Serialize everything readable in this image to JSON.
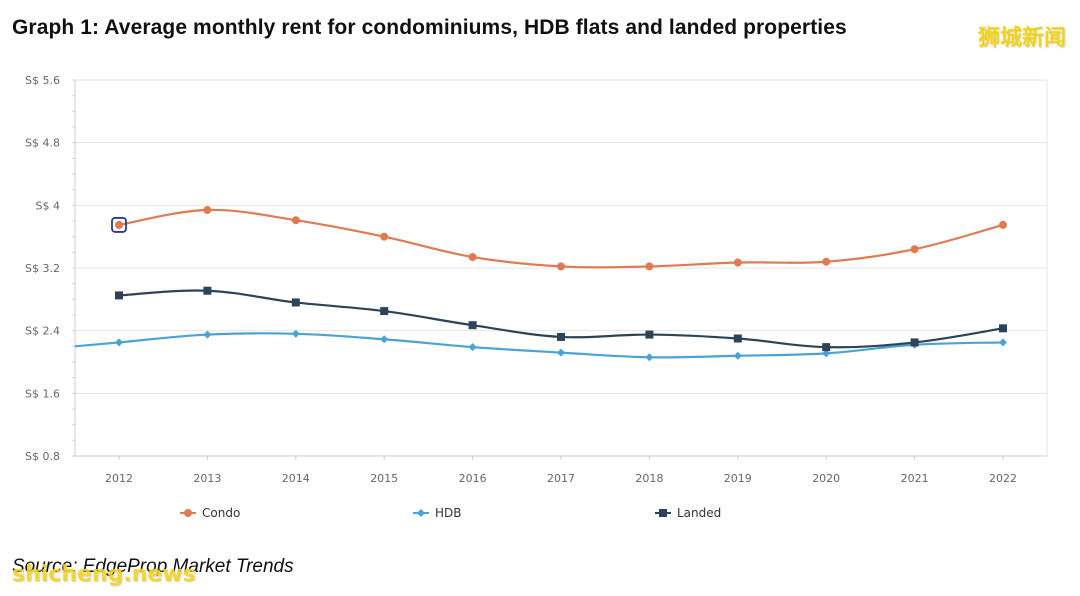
{
  "title": "Graph 1: Average monthly rent for condominiums, HDB flats and landed properties",
  "source": "Source: EdgeProp Market Trends",
  "watermark_top": "狮城新闻",
  "watermark_bottom": "shicheng.news",
  "colors": {
    "condo": "#e07a50",
    "hdb": "#4aa3d6",
    "landed": "#2d4358",
    "grid": "#e6e6e6",
    "axis": "#cccccc"
  },
  "chart_data": {
    "type": "line",
    "title": "Graph 1: Average monthly rent for condominiums, HDB flats and landed properties",
    "xlabel": "",
    "ylabel": "",
    "categories": [
      "2012",
      "2013",
      "2014",
      "2015",
      "2016",
      "2017",
      "2018",
      "2019",
      "2020",
      "2021",
      "2022"
    ],
    "ylim": [
      0.8,
      5.6
    ],
    "yticks": [
      {
        "value": 0.8,
        "label": "S$ 0.8"
      },
      {
        "value": 1.6,
        "label": "S$ 1.6"
      },
      {
        "value": 2.4,
        "label": "S$ 2.4"
      },
      {
        "value": 3.2,
        "label": "S$ 3.2"
      },
      {
        "value": 4.0,
        "label": "S$ 4"
      },
      {
        "value": 4.8,
        "label": "S$ 4.8"
      },
      {
        "value": 5.6,
        "label": "S$ 5.6"
      }
    ],
    "grid": true,
    "legend_position": "bottom",
    "series": [
      {
        "name": "Condo",
        "key": "condo",
        "marker": "circle",
        "values": [
          3.75,
          3.94,
          3.81,
          3.6,
          3.34,
          3.22,
          3.22,
          3.27,
          3.28,
          3.44,
          3.75
        ]
      },
      {
        "name": "HDB",
        "key": "hdb",
        "marker": "diamond",
        "values": [
          2.25,
          2.35,
          2.36,
          2.29,
          2.19,
          2.12,
          2.06,
          2.08,
          2.11,
          2.22,
          2.25
        ]
      },
      {
        "name": "Landed",
        "key": "landed",
        "marker": "square",
        "values": [
          2.85,
          2.91,
          2.76,
          2.65,
          2.47,
          2.32,
          2.35,
          2.3,
          2.19,
          2.25,
          2.43
        ]
      }
    ],
    "hdb_left_edge_value": 2.2,
    "highlighted_point": {
      "series": "Condo",
      "category": "2012"
    }
  }
}
